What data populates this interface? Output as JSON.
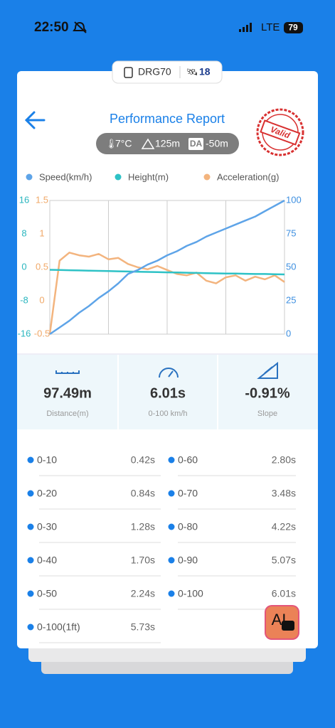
{
  "status_bar": {
    "time": "22:50",
    "network": "LTE",
    "battery": "79"
  },
  "device": {
    "name": "DRG70",
    "satellites": "18"
  },
  "header": {
    "title": "Performance Report",
    "stamp": "Valid"
  },
  "conditions": {
    "temperature": "7°C",
    "altitude": "125m",
    "da_label": "DA",
    "density_altitude": "-50m"
  },
  "chart_data": {
    "type": "line",
    "series": [
      {
        "name": "Speed(km/h)",
        "color": "#5ea4e8",
        "axis": "y2",
        "values": [
          0,
          5,
          10,
          16,
          21,
          27,
          32,
          38,
          45,
          48,
          52,
          55,
          59,
          62,
          66,
          69,
          73,
          76,
          79,
          82,
          85,
          88,
          92,
          96,
          100
        ]
      },
      {
        "name": "Height(m)",
        "color": "#2ec2c6",
        "values": [
          -0.6,
          -0.65,
          -0.7,
          -0.75,
          -0.8,
          -0.85,
          -0.9,
          -0.95,
          -1,
          -1.05,
          -1.1,
          -1.15,
          -1.2,
          -1.25,
          -1.3,
          -1.35,
          -1.4,
          -1.45,
          -1.5,
          -1.5,
          -1.55,
          -1.6,
          -1.6,
          -1.65,
          -1.7
        ]
      },
      {
        "name": "Acceleration(g)",
        "color": "#f3b47e",
        "axis": "y3",
        "values": [
          -0.5,
          0.6,
          0.72,
          0.68,
          0.66,
          0.7,
          0.62,
          0.64,
          0.55,
          0.5,
          0.47,
          0.52,
          0.46,
          0.4,
          0.38,
          0.42,
          0.3,
          0.26,
          0.35,
          0.38,
          0.3,
          0.36,
          0.32,
          0.38,
          0.28
        ]
      }
    ],
    "ylim": [
      -16,
      16
    ],
    "yticks": [
      16,
      8,
      0,
      -8,
      -16
    ],
    "y2lim": [
      0,
      100
    ],
    "y2ticks": [
      100,
      75,
      50,
      25,
      0
    ],
    "y3lim": [
      -0.5,
      1.5
    ],
    "y3ticks": [
      1.5,
      1,
      0.5,
      0,
      -0.5
    ]
  },
  "summary": [
    {
      "value": "97.49m",
      "label": "Distance(m)"
    },
    {
      "value": "6.01s",
      "label": "0-100 km/h"
    },
    {
      "value": "-0.91%",
      "label": "Slope"
    }
  ],
  "splits": {
    "left": [
      {
        "label": "0-10",
        "time": "0.42s"
      },
      {
        "label": "0-20",
        "time": "0.84s"
      },
      {
        "label": "0-30",
        "time": "1.28s"
      },
      {
        "label": "0-40",
        "time": "1.70s"
      },
      {
        "label": "0-50",
        "time": "2.24s"
      },
      {
        "label": "0-100(1ft)",
        "time": "5.73s"
      }
    ],
    "right": [
      {
        "label": "0-60",
        "time": "2.80s"
      },
      {
        "label": "0-70",
        "time": "3.48s"
      },
      {
        "label": "0-80",
        "time": "4.22s"
      },
      {
        "label": "0-90",
        "time": "5.07s"
      },
      {
        "label": "0-100",
        "time": "6.01s"
      }
    ]
  },
  "ai_button": {
    "label": "AI"
  }
}
